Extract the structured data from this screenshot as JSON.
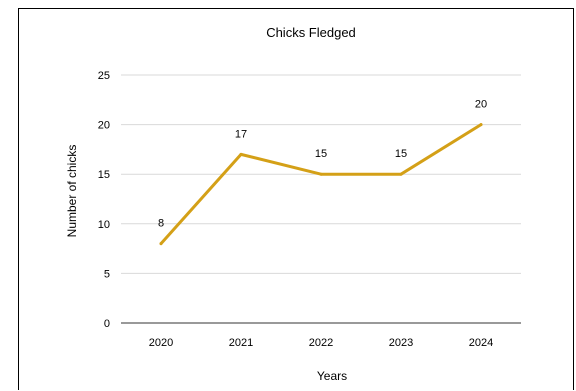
{
  "chart_data": {
    "type": "line",
    "title": "Chicks Fledged",
    "xlabel": "Years",
    "ylabel": "Number of chicks",
    "categories": [
      "2020",
      "2021",
      "2022",
      "2023",
      "2024"
    ],
    "series": [
      {
        "values": [
          8,
          17,
          15,
          15,
          20
        ],
        "color": "#d4a017"
      }
    ],
    "data_labels": [
      "8",
      "17",
      "15",
      "15",
      "20"
    ],
    "ylim": [
      0,
      25
    ],
    "yticks": [
      "0",
      "5",
      "10",
      "15",
      "20",
      "25"
    ],
    "grid": true,
    "legend": "none"
  }
}
